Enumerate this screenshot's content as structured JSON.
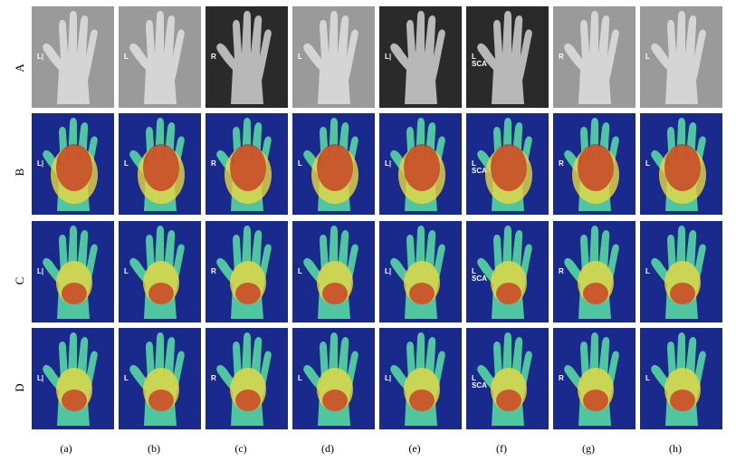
{
  "rows": [
    "A",
    "B",
    "C",
    "D"
  ],
  "columns": [
    "(a)",
    "(b)",
    "(c)",
    "(d)",
    "(e)",
    "(f)",
    "(g)",
    "(h)"
  ],
  "row_kinds": [
    "xray",
    "heatmap",
    "heatmap",
    "heatmap"
  ],
  "cell_marker_text": [
    "L|",
    "L",
    "R",
    "L",
    "L|",
    "L\nSCA",
    "R",
    "L"
  ],
  "colors": {
    "xray_bg_dark": "#2a2a2a",
    "xray_bg_light": "#9a9a9a",
    "bone": "#e8e8e8",
    "heat_low": "#1a2a8c",
    "heat_mid": "#4fc6a0",
    "heat_warm": "#e8d840",
    "heat_hot": "#c83020"
  }
}
